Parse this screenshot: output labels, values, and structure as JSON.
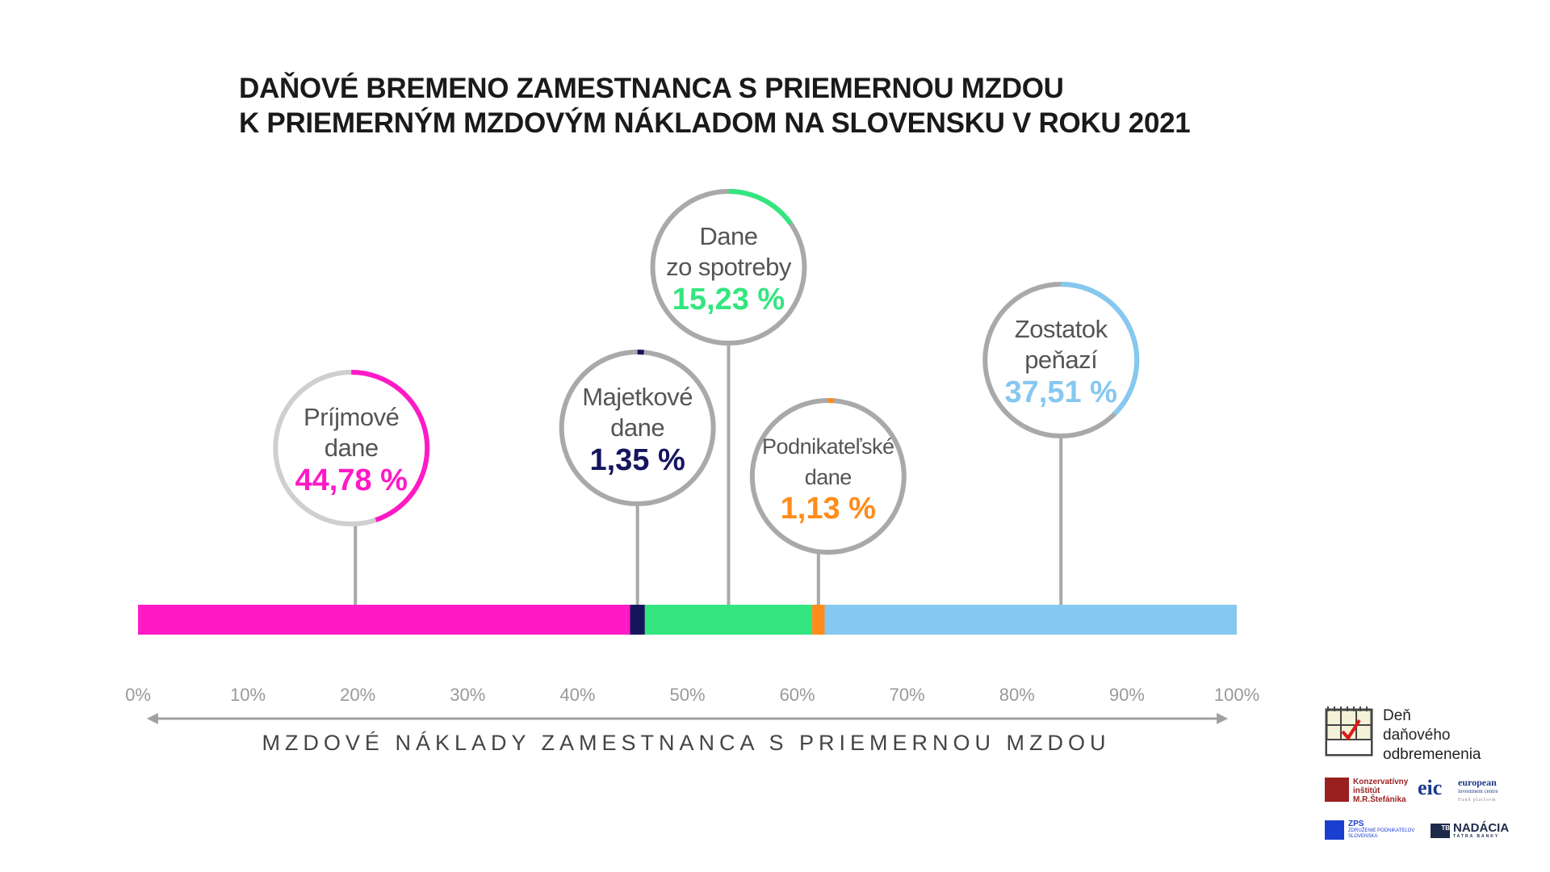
{
  "title": {
    "line1": "DAŇOVÉ BREMENO ZAMESTNANCA S PRIEMERNOU MZDOU",
    "line2": "K PRIEMERNÝM MZDOVÝM NÁKLADOM NA SLOVENSKU V ROKU 2021"
  },
  "chart_data": {
    "type": "bar",
    "subtype": "stacked-horizontal-100",
    "title": "DAŇOVÉ BREMENO ZAMESTNANCA S PRIEMERNOU MZDOU K PRIEMERNÝM MZDOVÝM NÁKLADOM NA SLOVENSKU V ROKU 2021",
    "xlabel": "MZDOVÉ NÁKLADY ZAMESTNANCA S PRIEMERNOU MZDOU",
    "xlim": [
      0,
      100
    ],
    "xticks": [
      "0%",
      "10%",
      "20%",
      "30%",
      "40%",
      "50%",
      "60%",
      "70%",
      "80%",
      "90%",
      "100%"
    ],
    "series": [
      {
        "name": "Príjmové dane",
        "label_lines": [
          "Príjmové",
          "dane"
        ],
        "value": 44.78,
        "value_label": "44,78 %",
        "color": "#ff1ac6"
      },
      {
        "name": "Majetkové dane",
        "label_lines": [
          "Majetkové",
          "dane"
        ],
        "value": 1.35,
        "value_label": "1,35 %",
        "color": "#15155e"
      },
      {
        "name": "Dane zo spotreby",
        "label_lines": [
          "Dane",
          "zo spotreby"
        ],
        "value": 15.23,
        "value_label": "15,23 %",
        "color": "#33e67f"
      },
      {
        "name": "Podnikateľské dane",
        "label_lines": [
          "Podnikateľské",
          "dane"
        ],
        "value": 1.13,
        "value_label": "1,13 %",
        "color": "#ff8c1a"
      },
      {
        "name": "Zostatok peňazí",
        "label_lines": [
          "Zostatok",
          "peňazí"
        ],
        "value": 37.51,
        "value_label": "37,51 %",
        "color": "#85c8f0"
      }
    ]
  },
  "logos": {
    "ddo": [
      "Deň",
      "daňového",
      "odbremenenia"
    ],
    "kimrs": [
      "Konzervatívny",
      "inštitút",
      "M.R.Štefánika"
    ],
    "eic": {
      "mark": "eic",
      "name1": "european",
      "name2": "investment centre",
      "tag": "Fund platform"
    },
    "zps": {
      "mark": "ZPS",
      "name1": "ZDRUŽENIE PODNIKATEĽOV",
      "name2": "SLOVENSKA"
    },
    "ntb": {
      "mark": "TB",
      "name1": "NADÁCIA",
      "name2": "TATRA BANKY"
    }
  }
}
